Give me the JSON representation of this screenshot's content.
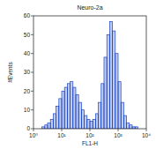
{
  "chart_data": {
    "type": "histogram",
    "title": "Neuro-2a",
    "x_label": "FL1-H",
    "y_label": "#Events",
    "log": "x",
    "color": "#1a44c8",
    "bins": [
      1,
      1.26,
      1.58,
      2.0,
      2.51,
      3.16,
      3.98,
      5.01,
      6.31,
      7.94,
      10,
      12.6,
      15.8,
      20.0,
      25.1,
      31.6,
      39.8,
      50.1,
      63.1,
      79.4,
      100,
      126,
      158,
      200,
      251,
      316,
      398,
      501,
      631,
      794,
      1000,
      1260,
      1580,
      2000,
      2510,
      3160,
      3980,
      5010,
      6310,
      7940,
      10000
    ],
    "values": [
      0,
      0,
      0,
      1,
      2,
      3,
      5,
      8,
      12,
      16,
      20,
      22,
      24,
      25,
      22,
      18,
      14,
      10,
      7,
      5,
      4,
      5,
      8,
      14,
      24,
      38,
      50,
      57,
      52,
      40,
      25,
      14,
      7,
      3,
      2,
      1,
      1,
      0,
      0,
      0
    ],
    "xlim": [
      1,
      10000
    ],
    "xticks": [
      {
        "value": 1,
        "label": "10⁰"
      },
      {
        "value": 10,
        "label": "10¹"
      },
      {
        "value": 100,
        "label": "10²"
      },
      {
        "value": 1000,
        "label": "10³"
      },
      {
        "value": 10000,
        "label": "10⁴"
      }
    ],
    "ylim": [
      0,
      60
    ],
    "yticks": [
      0,
      10,
      20,
      30,
      40,
      50,
      60
    ]
  }
}
